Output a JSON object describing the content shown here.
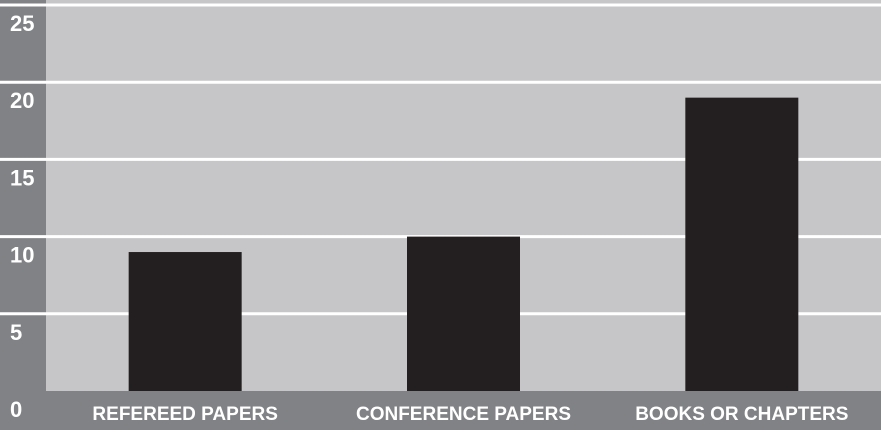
{
  "chart_data": {
    "type": "bar",
    "categories": [
      "REFEREED PAPERS",
      "CONFERENCE PAPERS",
      "BOOKS OR CHAPTERS"
    ],
    "values": [
      9,
      10,
      19
    ],
    "ylim": [
      0,
      25
    ],
    "yticks": [
      "0",
      "5",
      "10",
      "15",
      "20",
      "25"
    ],
    "grid": true,
    "colors": {
      "bar": "#231f20",
      "plot_background": "#c6c6c8",
      "axis_band": "#808285",
      "gridline": "#ffffff",
      "label_text": "#ffffff"
    }
  }
}
